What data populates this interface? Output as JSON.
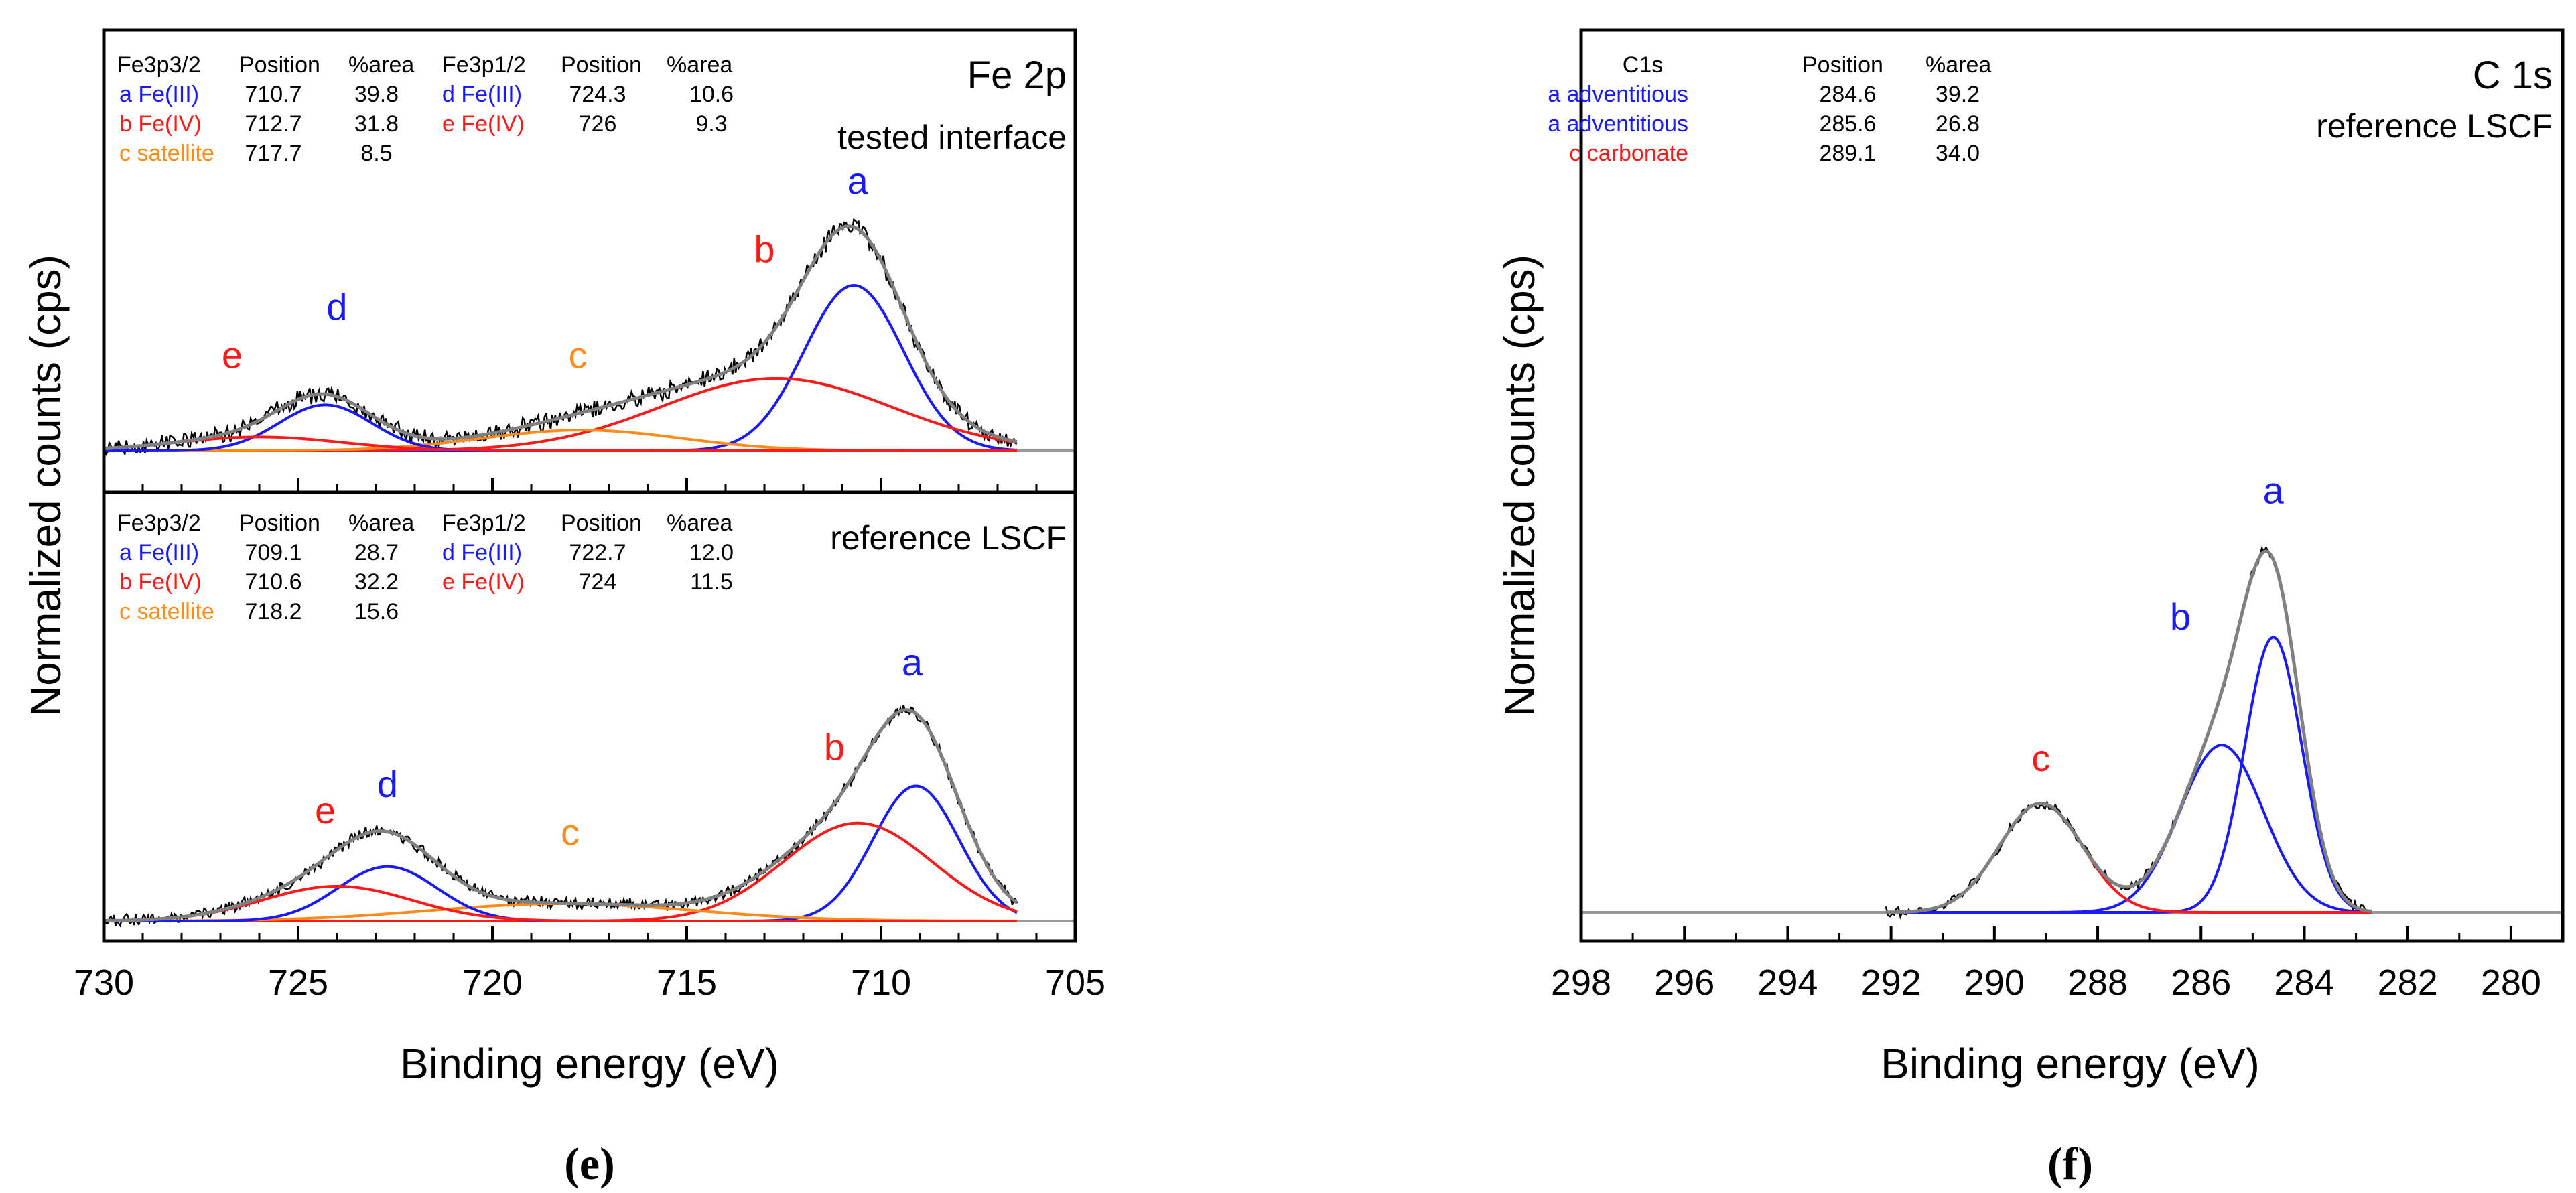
{
  "colors": {
    "blue": "#1a1aff",
    "red": "#ff1a1a",
    "orange": "#ff8c1a",
    "black": "#000000",
    "gray": "#9a9a9a",
    "envelope": "#808080"
  },
  "chart_data": [
    {
      "id": "e",
      "type": "line",
      "title": "Fe 2p",
      "xlabel": "Binding energy (eV)",
      "ylabel": "Normalized counts (cps)",
      "xlim": [
        730,
        705
      ],
      "xticks": [
        730,
        725,
        720,
        715,
        710,
        705
      ],
      "xtick_labels": [
        "730",
        "725",
        "720",
        "715",
        "710",
        "705"
      ],
      "caption": "(e)",
      "panels": [
        {
          "id": "top",
          "sample_label": "tested interface",
          "data_range": [
            706.5,
            730
          ],
          "table": {
            "headers": [
              "Fe3p3/2",
              "Position",
              "%area",
              "Fe3p1/2",
              "Position",
              "%area"
            ],
            "rows": [
              [
                {
                  "t": "a Fe(III)",
                  "c": "blue"
                },
                {
                  "t": "710.7"
                },
                {
                  "t": "39.8"
                },
                {
                  "t": "d Fe(III)",
                  "c": "blue"
                },
                {
                  "t": "724.3"
                },
                {
                  "t": "10.6"
                }
              ],
              [
                {
                  "t": "b Fe(IV)",
                  "c": "red"
                },
                {
                  "t": "712.7"
                },
                {
                  "t": "31.8"
                },
                {
                  "t": "e Fe(IV)",
                  "c": "red"
                },
                {
                  "t": "726"
                },
                {
                  "t": "9.3"
                }
              ],
              [
                {
                  "t": "c satellite",
                  "c": "orange"
                },
                {
                  "t": "717.7"
                },
                {
                  "t": "8.5"
                },
                {
                  "t": ""
                },
                {
                  "t": ""
                },
                {
                  "t": ""
                }
              ]
            ]
          },
          "components": [
            {
              "label": "a",
              "color": "blue",
              "center": 710.7,
              "height": 0.72,
              "fwhm": 3.0
            },
            {
              "label": "b",
              "color": "red",
              "center": 712.7,
              "height": 0.315,
              "fwhm": 7.0
            },
            {
              "label": "c",
              "color": "orange",
              "center": 717.7,
              "height": 0.09,
              "fwhm": 6.0
            },
            {
              "label": "d",
              "color": "blue",
              "center": 724.3,
              "height": 0.2,
              "fwhm": 2.8
            },
            {
              "label": "e",
              "color": "red",
              "center": 726.0,
              "height": 0.06,
              "fwhm": 5.0
            }
          ],
          "peak_labels": [
            {
              "text": "a",
              "color": "blue",
              "x": 710.6,
              "y": 1.12
            },
            {
              "text": "b",
              "color": "red",
              "x": 713.0,
              "y": 0.82
            },
            {
              "text": "c",
              "color": "orange",
              "x": 717.8,
              "y": 0.36
            },
            {
              "text": "d",
              "color": "blue",
              "x": 724.0,
              "y": 0.57
            },
            {
              "text": "e",
              "color": "red",
              "x": 726.7,
              "y": 0.36
            }
          ]
        },
        {
          "id": "bottom",
          "sample_label": "reference LSCF",
          "data_range": [
            706.5,
            730
          ],
          "table": {
            "headers": [
              "Fe3p3/2",
              "Position",
              "%area",
              "Fe3p1/2",
              "Position",
              "%area"
            ],
            "rows": [
              [
                {
                  "t": "a Fe(III)",
                  "c": "blue"
                },
                {
                  "t": "709.1"
                },
                {
                  "t": "28.7"
                },
                {
                  "t": "d Fe(III)",
                  "c": "blue"
                },
                {
                  "t": "722.7"
                },
                {
                  "t": "12.0"
                }
              ],
              [
                {
                  "t": "b Fe(IV)",
                  "c": "red"
                },
                {
                  "t": "710.6"
                },
                {
                  "t": "32.2"
                },
                {
                  "t": "e Fe(IV)",
                  "c": "red"
                },
                {
                  "t": "724"
                },
                {
                  "t": "11.5"
                }
              ],
              [
                {
                  "t": "c satellite",
                  "c": "orange"
                },
                {
                  "t": "718.2"
                },
                {
                  "t": "15.6"
                },
                {
                  "t": ""
                },
                {
                  "t": ""
                },
                {
                  "t": ""
                }
              ]
            ]
          },
          "components": [
            {
              "label": "a",
              "color": "blue",
              "center": 709.1,
              "height": 0.62,
              "fwhm": 2.6
            },
            {
              "label": "b",
              "color": "red",
              "center": 710.6,
              "height": 0.45,
              "fwhm": 4.5
            },
            {
              "label": "c",
              "color": "orange",
              "center": 718.2,
              "height": 0.08,
              "fwhm": 8.0
            },
            {
              "label": "d",
              "color": "blue",
              "center": 722.7,
              "height": 0.25,
              "fwhm": 3.0
            },
            {
              "label": "e",
              "color": "red",
              "center": 724.0,
              "height": 0.16,
              "fwhm": 4.5
            }
          ],
          "peak_labels": [
            {
              "text": "a",
              "color": "blue",
              "x": 709.2,
              "y": 1.13
            },
            {
              "text": "b",
              "color": "red",
              "x": 711.2,
              "y": 0.74
            },
            {
              "text": "c",
              "color": "orange",
              "x": 718.0,
              "y": 0.35
            },
            {
              "text": "d",
              "color": "blue",
              "x": 722.7,
              "y": 0.57
            },
            {
              "text": "e",
              "color": "red",
              "x": 724.3,
              "y": 0.45
            }
          ]
        }
      ]
    },
    {
      "id": "f",
      "type": "line",
      "title": "C 1s",
      "sample_label": "reference LSCF",
      "xlabel": "Binding energy (eV)",
      "ylabel": "Normalized counts (cps)",
      "xlim": [
        298,
        279
      ],
      "xticks": [
        298,
        296,
        294,
        292,
        290,
        288,
        286,
        284,
        282,
        280
      ],
      "xtick_labels": [
        "298",
        "296",
        "294",
        "292",
        "290",
        "288",
        "286",
        "284",
        "282",
        "280"
      ],
      "caption": "(f)",
      "data_range": [
        282.7,
        292.1
      ],
      "table": {
        "headers": [
          "C1s",
          "Position",
          "%area"
        ],
        "rows": [
          [
            {
              "t": "a adventitious",
              "c": "blue"
            },
            {
              "t": "284.6"
            },
            {
              "t": "39.2"
            }
          ],
          [
            {
              "t": "a adventitious",
              "c": "blue"
            },
            {
              "t": "285.6"
            },
            {
              "t": "26.8"
            }
          ],
          [
            {
              "t": "c carbonate",
              "c": "red"
            },
            {
              "t": "289.1"
            },
            {
              "t": "34.0"
            }
          ]
        ]
      },
      "components": [
        {
          "label": "a",
          "color": "blue",
          "center": 284.6,
          "height": 0.74,
          "fwhm": 1.3
        },
        {
          "label": "b",
          "color": "blue",
          "center": 285.6,
          "height": 0.45,
          "fwhm": 1.9
        },
        {
          "label": "c",
          "color": "red",
          "center": 289.1,
          "height": 0.293,
          "fwhm": 1.9
        }
      ],
      "peak_labels": [
        {
          "text": "a",
          "color": "blue",
          "x": 284.6,
          "y": 1.1
        },
        {
          "text": "b",
          "color": "blue",
          "x": 286.4,
          "y": 0.76
        },
        {
          "text": "c",
          "color": "red",
          "x": 289.1,
          "y": 0.38
        }
      ]
    }
  ]
}
